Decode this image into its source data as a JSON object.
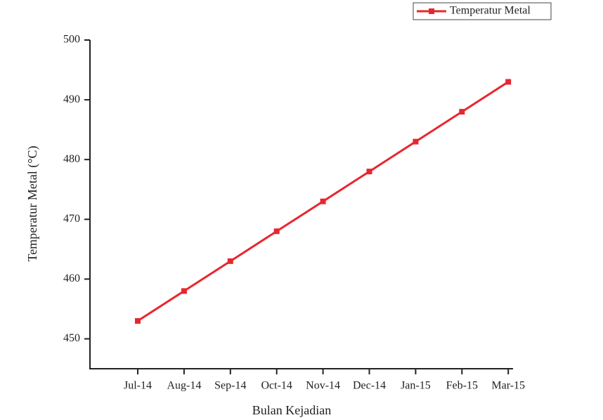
{
  "chart_data": {
    "type": "line",
    "x_label": "Bulan Kejadian",
    "y_label": "Temperatur Metal (°C)",
    "categories": [
      "Jul-14",
      "Aug-14",
      "Sep-14",
      "Oct-14",
      "Nov-14",
      "Dec-14",
      "Jan-15",
      "Feb-15",
      "Mar-15"
    ],
    "series": [
      {
        "name": "Temperatur Metal",
        "color": "#e8262f",
        "values": [
          453,
          458,
          463,
          468,
          473,
          478,
          483,
          488,
          493
        ]
      }
    ],
    "ylim": [
      445,
      500
    ],
    "yticks": [
      450,
      460,
      470,
      480,
      490,
      500
    ],
    "legend": "top-right"
  }
}
